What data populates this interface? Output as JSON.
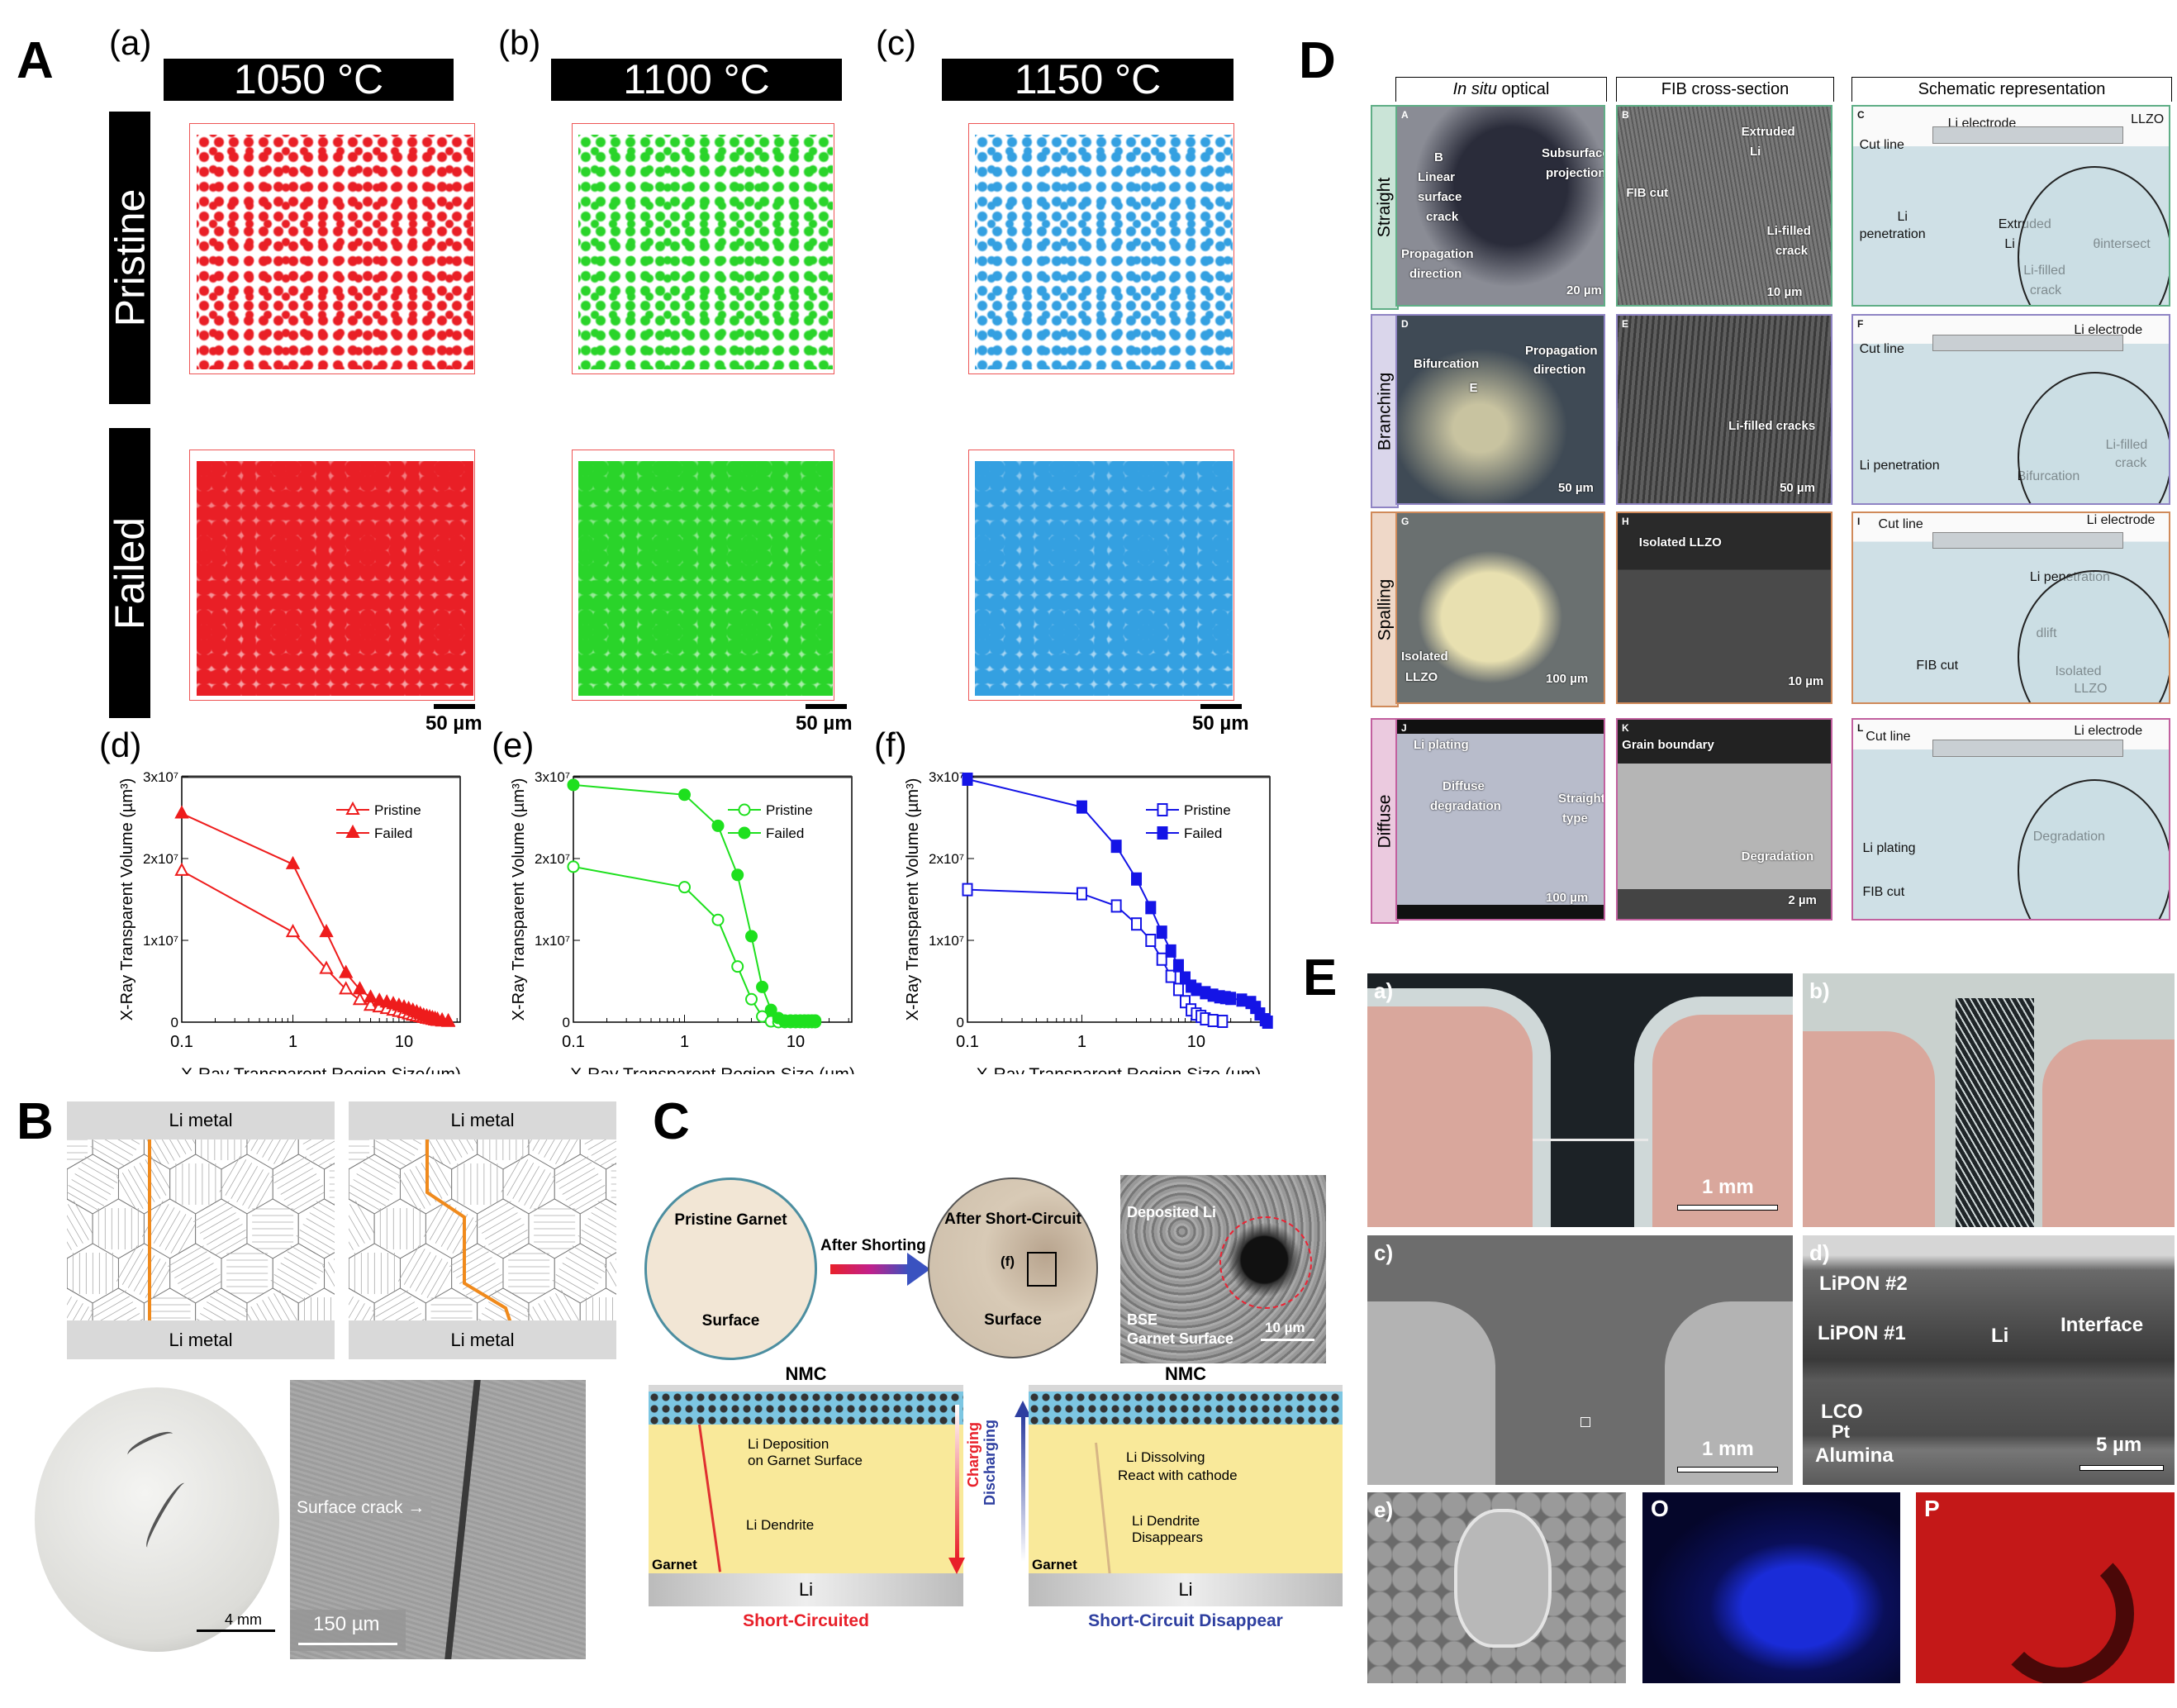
{
  "panel_A": {
    "label": "A",
    "subpanel_labels": [
      "(a)",
      "(b)",
      "(c)",
      "(d)",
      "(e)",
      "(f)"
    ],
    "temperatures": [
      "1050 °C",
      "1100 °C",
      "1150 °C"
    ],
    "rows": [
      "Pristine",
      "Failed"
    ],
    "scale_bar": "50 µm",
    "render_colors": [
      "#e8141b",
      "#1fd21f",
      "#2a9be0"
    ]
  },
  "chart_data": [
    {
      "type": "line",
      "xscale": "log",
      "xlim": [
        0.1,
        32
      ],
      "ylim": [
        0,
        30000000
      ],
      "xlabel": "X-Ray Transparent Region Size(µm)",
      "ylabel": "X-Ray Transparent Volume (µm³)",
      "xticks": {
        "values": [
          0.1,
          1,
          10
        ],
        "labels": [
          "0.1",
          "1",
          "10"
        ]
      },
      "yticks": {
        "values": [
          0,
          10000000,
          20000000,
          30000000
        ],
        "labels": [
          "0",
          "1x10⁷",
          "2x10⁷",
          "3x10⁷"
        ]
      },
      "legend": "top-right",
      "color": "#ee1c1c",
      "marker": "triangle",
      "series": [
        {
          "name": "Pristine",
          "filled": false,
          "x": [
            0.1,
            1,
            2,
            3,
            4,
            5,
            6,
            7,
            8,
            9,
            10,
            11,
            12,
            13,
            14,
            15,
            16,
            17,
            18,
            19,
            20,
            22,
            25
          ],
          "y": [
            18500000,
            11000000,
            6500000,
            4000000,
            2700000,
            2000000,
            1800000,
            1600000,
            1400000,
            1250000,
            1100000,
            950000,
            800000,
            700000,
            600000,
            500000,
            420000,
            350000,
            280000,
            200000,
            150000,
            80000,
            30000
          ]
        },
        {
          "name": "Failed",
          "filled": true,
          "x": [
            0.1,
            1,
            2,
            3,
            4,
            5,
            6,
            7,
            8,
            9,
            10,
            11,
            12,
            13,
            14,
            15,
            16,
            17,
            18,
            19,
            20,
            22,
            25
          ],
          "y": [
            25500000,
            19300000,
            11000000,
            6000000,
            4000000,
            3000000,
            2600000,
            2400000,
            2200000,
            2000000,
            1800000,
            1600000,
            1400000,
            1200000,
            1000000,
            800000,
            700000,
            600000,
            500000,
            400000,
            300000,
            200000,
            100000
          ]
        }
      ]
    },
    {
      "type": "line",
      "xscale": "log",
      "xlim": [
        0.1,
        32
      ],
      "ylim": [
        0,
        30000000
      ],
      "xlabel": "X-Ray Transparent Region Size (µm)",
      "ylabel": "X-Ray Transparent Volume (µm³)",
      "xticks": {
        "values": [
          0.1,
          1,
          10
        ],
        "labels": [
          "0.1",
          "1",
          "10"
        ]
      },
      "yticks": {
        "values": [
          0,
          10000000,
          20000000,
          30000000
        ],
        "labels": [
          "0",
          "1x10⁷",
          "2x10⁷",
          "3x10⁷"
        ]
      },
      "legend": "top-right",
      "color": "#1ee01e",
      "marker": "circle",
      "series": [
        {
          "name": "Pristine",
          "filled": false,
          "x": [
            0.1,
            1,
            2,
            3,
            4,
            5,
            6,
            7,
            8,
            9,
            10,
            11,
            12,
            13,
            14,
            15
          ],
          "y": [
            19000000,
            16500000,
            12500000,
            6800000,
            2800000,
            700000,
            100000,
            0,
            0,
            0,
            0,
            0,
            0,
            0,
            0,
            0
          ]
        },
        {
          "name": "Failed",
          "filled": true,
          "x": [
            0.1,
            1,
            2,
            3,
            4,
            5,
            6,
            7,
            8,
            9,
            10,
            11,
            12,
            13,
            14,
            15
          ],
          "y": [
            29000000,
            27800000,
            24000000,
            18000000,
            10500000,
            4300000,
            1500000,
            500000,
            200000,
            200000,
            200000,
            200000,
            200000,
            200000,
            200000,
            200000
          ]
        }
      ]
    },
    {
      "type": "line",
      "xscale": "log",
      "xlim": [
        0.1,
        44
      ],
      "ylim": [
        0,
        30000000
      ],
      "xlabel": "X-Ray Transparent Region Size (µm)",
      "ylabel": "X-Ray Transparent Volume (µm³)",
      "xticks": {
        "values": [
          0.1,
          1,
          10
        ],
        "labels": [
          "0.1",
          "1",
          "10"
        ]
      },
      "yticks": {
        "values": [
          0,
          10000000,
          20000000,
          30000000
        ],
        "labels": [
          "0",
          "1x10⁷",
          "2x10⁷",
          "3x10⁷"
        ]
      },
      "legend": "top-right",
      "color": "#1414e6",
      "marker": "square",
      "series": [
        {
          "name": "Pristine",
          "filled": false,
          "x": [
            0.1,
            1,
            2,
            3,
            4,
            5,
            6,
            7,
            8,
            9,
            10,
            11,
            12,
            14,
            17
          ],
          "y": [
            16200000,
            15700000,
            14200000,
            12000000,
            10000000,
            7700000,
            5600000,
            4000000,
            2500000,
            1500000,
            1000000,
            700000,
            400000,
            200000,
            100000
          ]
        },
        {
          "name": "Failed",
          "filled": true,
          "x": [
            0.1,
            1,
            2,
            3,
            4,
            5,
            6,
            7,
            8,
            9,
            10,
            12,
            14,
            16,
            18,
            20,
            25,
            30,
            33,
            36,
            40,
            42
          ],
          "y": [
            29700000,
            26300000,
            21500000,
            17500000,
            14000000,
            11000000,
            8700000,
            6900000,
            5400000,
            4400000,
            4000000,
            3600000,
            3300000,
            3100000,
            3000000,
            2900000,
            2700000,
            2400000,
            1800000,
            1000000,
            300000,
            0
          ]
        }
      ]
    }
  ],
  "panel_B": {
    "label": "B",
    "li_metal": "Li metal",
    "path_color": "#f08a1c",
    "scale_photo": "4 mm",
    "surface_crack": "Surface crack",
    "scale_sem": "150 µm"
  },
  "panel_C": {
    "label": "C",
    "pristine_title": "Pristine Garnet",
    "pristine_surface": "Surface",
    "arrow_label": "After Shorting",
    "after_title": "After Short-Circuit",
    "after_surface": "Surface",
    "inset_marker": "(f)",
    "bse_deposited": "Deposited Li",
    "bse_label": "BSE",
    "bse_surface": "Garnet Surface",
    "bse_scale": "10 µm",
    "left": {
      "top": "NMC",
      "ann1": "Li Deposition",
      "ann2": "on Garnet Surface",
      "ann3": "Li Dendrite",
      "garnet": "Garnet",
      "li": "Li",
      "caption": "Short-Circuited"
    },
    "right": {
      "top": "NMC",
      "ann1": "Li Dissolving",
      "ann2": "React with cathode",
      "ann3": "Li Dendrite",
      "ann4": "Disappears",
      "garnet": "Garnet",
      "li": "Li",
      "caption": "Short-Circuit Disappear"
    },
    "charging": "Charging",
    "discharging": "Discharging",
    "colors": {
      "red": "#e8202a",
      "blue": "#2e3fa0"
    }
  },
  "panel_D": {
    "label": "D",
    "columns": [
      "In situ",
      " optical",
      "FIB cross-section",
      "Schematic representation"
    ],
    "rows": [
      {
        "name": "Straight",
        "color": "#5fae86",
        "a": {
          "tag": "A",
          "texts": [
            "B",
            "Linear",
            "surface",
            "crack",
            "Subsurface",
            "projection",
            "Propagation",
            "direction",
            "20 µm"
          ]
        },
        "b": {
          "tag": "B",
          "texts": [
            "Extruded",
            "Li",
            "FIB cut",
            "Li-filled",
            "crack",
            "10 µm"
          ]
        },
        "c": {
          "tag": "C",
          "texts": [
            "Li electrode",
            "LLZO",
            "Cut line",
            "Li",
            "penetration",
            "Extruded",
            "Li",
            "θintersect",
            "Li-filled",
            "crack"
          ]
        }
      },
      {
        "name": "Branching",
        "color": "#8f84c4",
        "a": {
          "tag": "D",
          "texts": [
            "Bifurcation",
            "Propagation",
            "direction",
            "E",
            "50 µm"
          ]
        },
        "b": {
          "tag": "E",
          "texts": [
            "Li-filled cracks",
            "50 µm"
          ]
        },
        "c": {
          "tag": "F",
          "texts": [
            "Li electrode",
            "Cut line",
            "Li penetration",
            "Li-filled",
            "crack",
            "Bifurcation"
          ]
        }
      },
      {
        "name": "Spalling",
        "color": "#d08a5a",
        "a": {
          "tag": "G",
          "texts": [
            "Isolated",
            "LLZO",
            "100 µm"
          ]
        },
        "b": {
          "tag": "H",
          "texts": [
            "Isolated LLZO",
            "10 µm"
          ]
        },
        "c": {
          "tag": "I",
          "texts": [
            "Cut line",
            "Li electrode",
            "Li penetration",
            "dlift",
            "FIB cut",
            "Isolated",
            "LLZO"
          ]
        }
      },
      {
        "name": "Diffuse",
        "color": "#c2609f",
        "a": {
          "tag": "J",
          "texts": [
            "Li plating",
            "Diffuse",
            "degradation",
            "Straight",
            "type",
            "100 µm"
          ]
        },
        "b": {
          "tag": "K",
          "texts": [
            "Grain boundary",
            "Degradation",
            "2 µm"
          ]
        },
        "c": {
          "tag": "L",
          "texts": [
            "Cut line",
            "Li electrode",
            "Li plating",
            "Degradation",
            "FIB cut"
          ]
        }
      }
    ]
  },
  "panel_E": {
    "label": "E",
    "a": {
      "tag": "a)",
      "scale": "1 mm"
    },
    "b": {
      "tag": "b)"
    },
    "c": {
      "tag": "c)",
      "scale": "1 mm"
    },
    "d": {
      "tag": "d)",
      "layers": [
        "LiPON #2",
        "LiPON #1",
        "LCO",
        "Pt",
        "Alumina"
      ],
      "li": "Li",
      "interface": "Interface",
      "scale": "5 µm"
    },
    "e": {
      "tag": "e)"
    },
    "o": {
      "tag": "O",
      "color": "#1a2cd8"
    },
    "p": {
      "tag": "P",
      "color": "#d21a1a"
    }
  }
}
